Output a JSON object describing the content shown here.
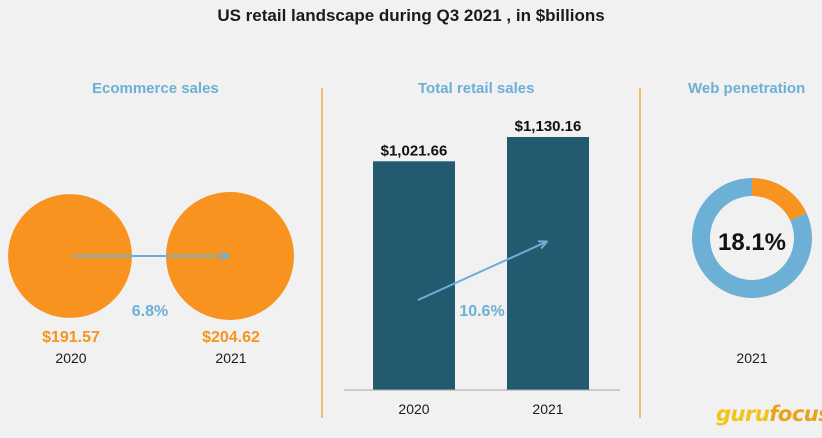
{
  "title": "US retail landscape during Q3 2021 , in $billions",
  "logo": {
    "part1": "guru",
    "part2": "focus"
  },
  "colors": {
    "orange": "#f7931e",
    "teal": "#245a70",
    "light_blue": "#6cb0d6",
    "divider": "#f4a64a"
  },
  "chart_data": [
    {
      "type": "bubble",
      "title": "Ecommerce sales",
      "categories": [
        "2020",
        "2021"
      ],
      "values": [
        191.57,
        204.62
      ],
      "value_labels": [
        "$191.57",
        "$204.62"
      ],
      "growth_label": "6.8%"
    },
    {
      "type": "bar",
      "title": "Total retail sales",
      "categories": [
        "2020",
        "2021"
      ],
      "values": [
        1021.66,
        1130.16
      ],
      "value_labels": [
        "$1,021.66",
        "$1,130.16"
      ],
      "growth_label": "10.6%"
    },
    {
      "type": "pie",
      "title": "Web penetration",
      "category": "2021",
      "value": 18.1,
      "value_label": "18.1%"
    }
  ]
}
